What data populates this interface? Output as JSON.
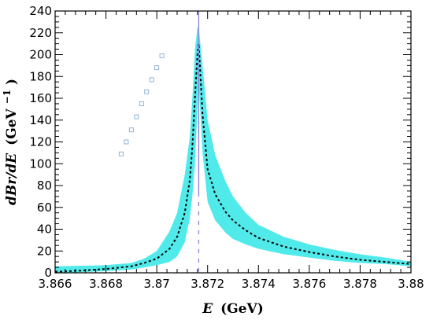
{
  "chart_data": {
    "type": "line",
    "title": "",
    "xlabel_main": "E",
    "xlabel_unit": "(GeV)",
    "ylabel_main": "dBr/dE",
    "ylabel_unit": "(GeV",
    "ylabel_unit_exp": "−1",
    "ylabel_unit_close": ")",
    "xlim": [
      3.866,
      3.88
    ],
    "ylim": [
      0,
      240
    ],
    "x_ticks": [
      3.866,
      3.868,
      3.87,
      3.872,
      3.874,
      3.876,
      3.878,
      3.88
    ],
    "x_tick_labels": [
      "3.866",
      "3.868",
      "3.87",
      "3.872",
      "3.874",
      "3.876",
      "3.878",
      "3.88"
    ],
    "y_ticks": [
      0,
      20,
      40,
      60,
      80,
      100,
      120,
      140,
      160,
      180,
      200,
      220,
      240
    ],
    "y_tick_labels": [
      "0",
      "20",
      "40",
      "60",
      "80",
      "100",
      "120",
      "140",
      "160",
      "180",
      "200",
      "220",
      "240"
    ],
    "grid": false,
    "vertical_line_x": 3.87165,
    "colors": {
      "band": "#33e6e6",
      "curve": "#000000",
      "vline": "#8c7fd9",
      "dashed_segment": "#ffffff",
      "scatter": "#8fb3d9"
    },
    "series": [
      {
        "style": "dotted-line",
        "x": [
          3.866,
          3.867,
          3.868,
          3.869,
          3.8695,
          3.87,
          3.8705,
          3.8708,
          3.8711,
          3.8713,
          3.8714,
          3.8715,
          3.8716,
          3.87165,
          3.8718,
          3.872,
          3.8723,
          3.8727,
          3.873,
          3.8735,
          3.874,
          3.875,
          3.876,
          3.877,
          3.878,
          3.879,
          3.88
        ],
        "y": [
          1,
          2,
          3.5,
          6,
          9,
          13,
          22,
          33,
          55,
          85,
          115,
          160,
          200,
          210,
          145,
          95,
          72,
          56,
          48,
          39,
          32,
          24,
          19,
          15,
          12,
          10,
          8
        ]
      },
      {
        "style": "band",
        "x": [
          3.866,
          3.867,
          3.868,
          3.869,
          3.8695,
          3.87,
          3.8705,
          3.8708,
          3.8711,
          3.8713,
          3.8714,
          3.8715,
          3.8716,
          3.87165,
          3.8718,
          3.872,
          3.8723,
          3.8727,
          3.873,
          3.8735,
          3.874,
          3.875,
          3.876,
          3.877,
          3.878,
          3.879,
          3.88
        ],
        "low": [
          0,
          0.5,
          1.5,
          3,
          5,
          7,
          10,
          15,
          28,
          50,
          70,
          100,
          150,
          175,
          110,
          65,
          48,
          37,
          31,
          26,
          22,
          17,
          14,
          11,
          9,
          8,
          6
        ],
        "high": [
          6,
          6.5,
          7,
          9,
          13,
          20,
          38,
          55,
          90,
          125,
          160,
          205,
          225,
          225,
          190,
          140,
          108,
          84,
          70,
          55,
          44,
          33,
          26,
          21,
          17,
          14,
          10
        ]
      },
      {
        "style": "scatter",
        "x": [
          3.8686,
          3.8688,
          3.869,
          3.8692,
          3.8694,
          3.8696,
          3.8698,
          3.87,
          3.8702
        ],
        "y": [
          109,
          120,
          131,
          143,
          155,
          166,
          177,
          188,
          199
        ]
      }
    ]
  }
}
